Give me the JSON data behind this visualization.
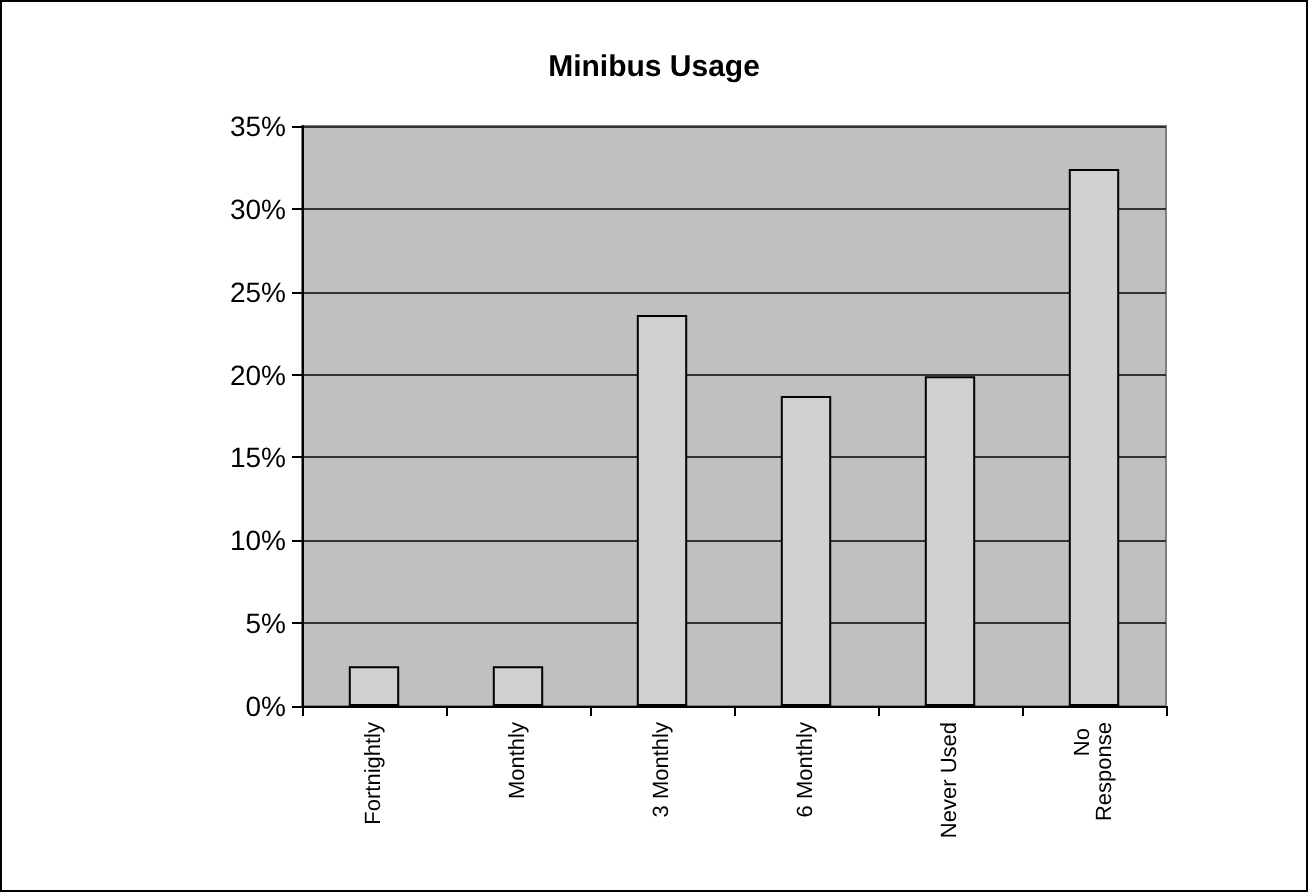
{
  "chart_data": {
    "type": "bar",
    "title": "Minibus Usage",
    "categories": [
      "Fortnightly",
      "Monthly",
      "3 Monthly",
      "6 Monthly",
      "Never Used",
      "No Response"
    ],
    "values": [
      2.4,
      2.4,
      23.6,
      18.7,
      19.9,
      32.4
    ],
    "color": "#d0d0d0",
    "ylim": [
      0,
      35
    ],
    "yticks": [
      {
        "value": 0,
        "label": "0%"
      },
      {
        "value": 5,
        "label": "5%"
      },
      {
        "value": 10,
        "label": "10%"
      },
      {
        "value": 15,
        "label": "15%"
      },
      {
        "value": 20,
        "label": "20%"
      },
      {
        "value": 25,
        "label": "25%"
      },
      {
        "value": 30,
        "label": "30%"
      },
      {
        "value": 35,
        "label": "35%"
      }
    ],
    "grid": true
  }
}
